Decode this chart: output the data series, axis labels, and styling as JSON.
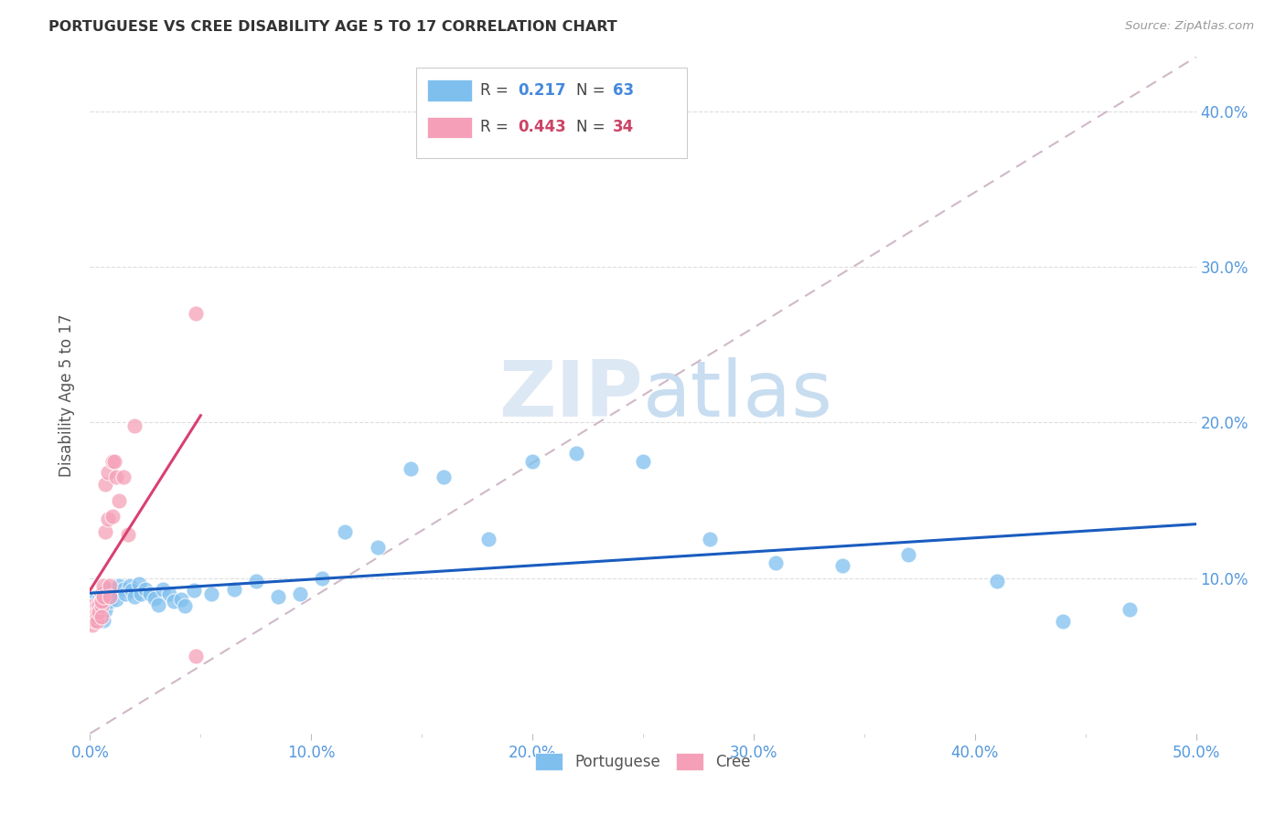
{
  "title": "PORTUGUESE VS CREE DISABILITY AGE 5 TO 17 CORRELATION CHART",
  "source": "Source: ZipAtlas.com",
  "ylabel": "Disability Age 5 to 17",
  "xlim": [
    0.0,
    0.5
  ],
  "ylim": [
    0.0,
    0.435
  ],
  "xtick_vals": [
    0.0,
    0.1,
    0.2,
    0.3,
    0.4,
    0.5
  ],
  "xtick_labels": [
    "0.0%",
    "10.0%",
    "20.0%",
    "30.0%",
    "40.0%",
    "50.0%"
  ],
  "ytick_vals": [
    0.1,
    0.2,
    0.3,
    0.4
  ],
  "ytick_labels": [
    "10.0%",
    "20.0%",
    "30.0%",
    "40.0%"
  ],
  "portuguese_color": "#7fbfee",
  "cree_color": "#f5a0b8",
  "trend_portuguese_color": "#1a5cbf",
  "trend_cree_color": "#d94070",
  "identity_line_color": "#d0b8c8",
  "R_portuguese": 0.217,
  "N_portuguese": 63,
  "R_cree": 0.443,
  "N_cree": 34,
  "portuguese_x": [
    0.001,
    0.001,
    0.002,
    0.002,
    0.003,
    0.003,
    0.003,
    0.004,
    0.004,
    0.005,
    0.005,
    0.005,
    0.006,
    0.006,
    0.006,
    0.007,
    0.007,
    0.008,
    0.008,
    0.009,
    0.009,
    0.01,
    0.011,
    0.012,
    0.013,
    0.015,
    0.016,
    0.018,
    0.019,
    0.02,
    0.022,
    0.023,
    0.025,
    0.027,
    0.029,
    0.031,
    0.033,
    0.036,
    0.038,
    0.041,
    0.043,
    0.047,
    0.055,
    0.065,
    0.075,
    0.085,
    0.095,
    0.105,
    0.115,
    0.13,
    0.145,
    0.16,
    0.18,
    0.2,
    0.22,
    0.25,
    0.28,
    0.31,
    0.34,
    0.37,
    0.41,
    0.44,
    0.47
  ],
  "portuguese_y": [
    0.082,
    0.076,
    0.085,
    0.079,
    0.088,
    0.083,
    0.075,
    0.086,
    0.08,
    0.083,
    0.077,
    0.09,
    0.088,
    0.082,
    0.073,
    0.085,
    0.079,
    0.088,
    0.093,
    0.09,
    0.085,
    0.093,
    0.09,
    0.086,
    0.095,
    0.093,
    0.09,
    0.095,
    0.092,
    0.088,
    0.096,
    0.09,
    0.093,
    0.09,
    0.087,
    0.083,
    0.093,
    0.09,
    0.085,
    0.086,
    0.082,
    0.092,
    0.09,
    0.093,
    0.098,
    0.088,
    0.09,
    0.1,
    0.13,
    0.12,
    0.17,
    0.165,
    0.125,
    0.175,
    0.18,
    0.175,
    0.125,
    0.11,
    0.108,
    0.115,
    0.098,
    0.072,
    0.08
  ],
  "cree_x": [
    0.001,
    0.001,
    0.001,
    0.002,
    0.002,
    0.002,
    0.003,
    0.003,
    0.003,
    0.003,
    0.004,
    0.004,
    0.005,
    0.005,
    0.005,
    0.005,
    0.006,
    0.006,
    0.007,
    0.007,
    0.008,
    0.008,
    0.009,
    0.009,
    0.01,
    0.01,
    0.011,
    0.012,
    0.013,
    0.015,
    0.017,
    0.02,
    0.048,
    0.048
  ],
  "cree_y": [
    0.082,
    0.075,
    0.07,
    0.08,
    0.078,
    0.073,
    0.082,
    0.078,
    0.075,
    0.072,
    0.082,
    0.078,
    0.082,
    0.09,
    0.085,
    0.075,
    0.095,
    0.088,
    0.16,
    0.13,
    0.168,
    0.138,
    0.095,
    0.088,
    0.14,
    0.175,
    0.175,
    0.165,
    0.15,
    0.165,
    0.128,
    0.198,
    0.27,
    0.05
  ]
}
